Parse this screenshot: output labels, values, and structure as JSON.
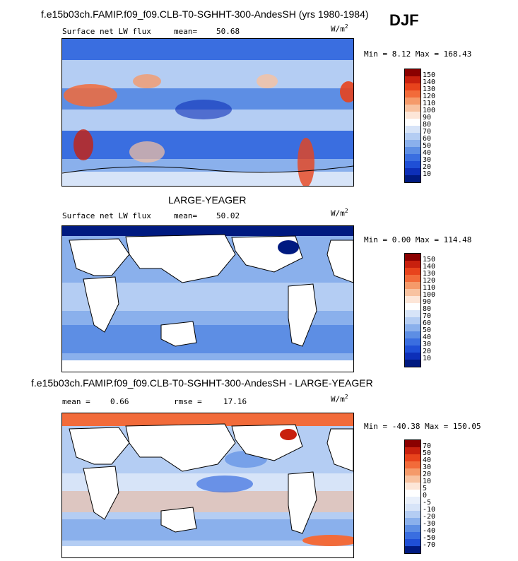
{
  "season": "DJF",
  "panels": [
    {
      "title": "f.e15b03ch.FAMIP.f09_f09.CLB-T0-SGHHT-300-AndesSH (yrs 1980-1984)",
      "left_label": "Surface net LW flux",
      "stat_label": "mean=",
      "stat_value": "50.68",
      "units": "W/m",
      "units_sup": "2",
      "minmax": "Min =   8.12 Max = 168.43",
      "levels": [
        "150",
        "140",
        "130",
        "120",
        "110",
        "100",
        "90",
        "80",
        "70",
        "60",
        "50",
        "40",
        "30",
        "20",
        "10"
      ]
    },
    {
      "title": "LARGE-YEAGER",
      "left_label": "Surface net LW flux",
      "stat_label": "mean=",
      "stat_value": "50.02",
      "units": "W/m",
      "units_sup": "2",
      "minmax": "Min =   0.00 Max = 114.48",
      "levels": [
        "150",
        "140",
        "130",
        "120",
        "110",
        "100",
        "90",
        "80",
        "70",
        "60",
        "50",
        "40",
        "30",
        "20",
        "10"
      ]
    },
    {
      "title": "f.e15b03ch.FAMIP.f09_f09.CLB-T0-SGHHT-300-AndesSH - LARGE-YEAGER",
      "left_label": "mean =",
      "left_value": "0.66",
      "stat_label": "rmse =",
      "stat_value": "17.16",
      "units": "W/m",
      "units_sup": "2",
      "minmax": "Min = -40.38 Max = 150.05",
      "levels": [
        "70",
        "50",
        "40",
        "30",
        "20",
        "10",
        "5",
        "0",
        "-5",
        "-10",
        "-20",
        "-30",
        "-40",
        "-50",
        "-70"
      ]
    }
  ],
  "colors": {
    "abs_scale": [
      "#8b0000",
      "#c8200e",
      "#e8431c",
      "#f26b3a",
      "#f59a6a",
      "#f8c2a0",
      "#fde6d8",
      "#ffffff",
      "#d7e4f8",
      "#b4cdf3",
      "#8ab0ec",
      "#5d8ee4",
      "#3a6ee0",
      "#1f4fd6",
      "#0d2fb8",
      "#001a80"
    ],
    "diff_scale": [
      "#8b0000",
      "#c8200e",
      "#e8431c",
      "#f26b3a",
      "#f59a6a",
      "#f8c2a0",
      "#fde6d8",
      "#ffffff",
      "#e9f0fb",
      "#d7e4f8",
      "#b4cdf3",
      "#8ab0ec",
      "#5d8ee4",
      "#3a6ee0",
      "#1f4fd6",
      "#001a80"
    ]
  }
}
